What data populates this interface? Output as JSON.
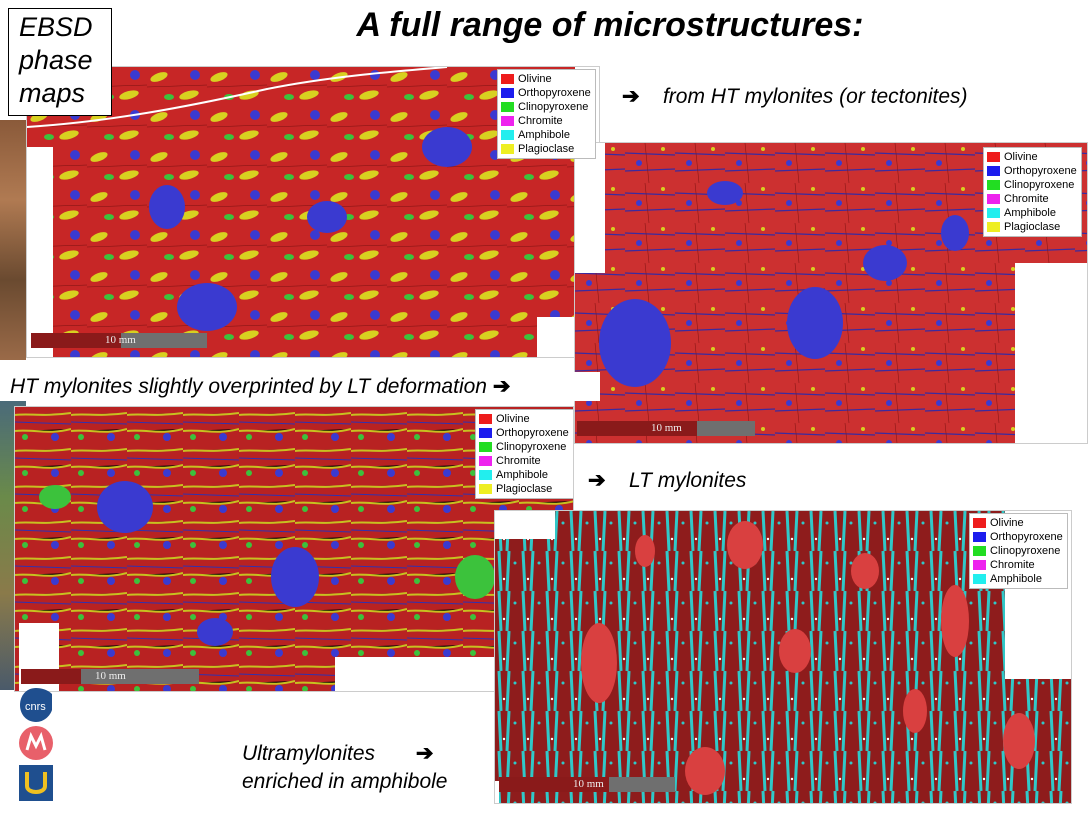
{
  "title": "A full range of microstructures:",
  "ebsd_label": [
    "EBSD",
    "phase",
    "maps"
  ],
  "captions": {
    "ht": "from HT mylonites (or tectonites)",
    "ht_overprint": "HT mylonites slightly overprinted by LT deformation",
    "lt": "LT mylonites",
    "ultra_line1": "Ultramylonites",
    "ultra_line2": "enriched in amphibole",
    "arrow": "➔"
  },
  "scale_label": "10 mm",
  "phases": [
    {
      "name": "Olivine",
      "color": "#ee1c1c"
    },
    {
      "name": "Orthopyroxene",
      "color": "#1c1cee"
    },
    {
      "name": "Clinopyroxene",
      "color": "#22dd22"
    },
    {
      "name": "Chromite",
      "color": "#ee22ee"
    },
    {
      "name": "Amphibole",
      "color": "#22eeee"
    },
    {
      "name": "Plagioclase",
      "color": "#eeee22"
    }
  ],
  "phases_ultra": [
    {
      "name": "Olivine",
      "color": "#ee1c1c"
    },
    {
      "name": "Orthopyroxene",
      "color": "#1c1cee"
    },
    {
      "name": "Clinopyroxene",
      "color": "#22dd22"
    },
    {
      "name": "Chromite",
      "color": "#ee22ee"
    },
    {
      "name": "Amphibole",
      "color": "#22eeee"
    }
  ],
  "logos": [
    "cnrs-logo",
    "montpellier-logo",
    "university-logo"
  ]
}
